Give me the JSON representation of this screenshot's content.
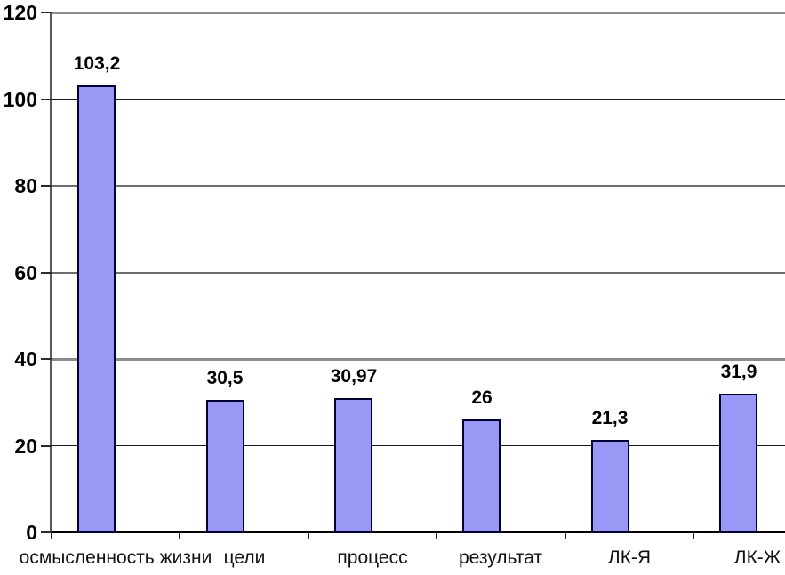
{
  "chart_data": {
    "type": "bar",
    "title": "",
    "xlabel": "",
    "ylabel": "",
    "categories": [
      "осмысленность жизни",
      "цели",
      "процесс",
      "результат",
      "ЛК-Я",
      "ЛК-Ж"
    ],
    "values": [
      103.2,
      30.5,
      30.97,
      26,
      21.3,
      31.9
    ],
    "value_labels": [
      "103,2",
      "30,5",
      "30,97",
      "26",
      "21,3",
      "31,9"
    ],
    "y_ticks": [
      0,
      20,
      40,
      60,
      80,
      100,
      120
    ],
    "y_tick_labels": [
      "0",
      "20",
      "40",
      "60",
      "80",
      "100",
      "120"
    ],
    "ylim": [
      0,
      120
    ],
    "grid": true,
    "legend": "none",
    "decimal_separator": ",",
    "colors": {
      "bar_fill": "#9999F5",
      "bar_border": "#000033",
      "grid_major": "#8c8c8c",
      "grid_medium": "#6e6e6e",
      "grid_minor": "#1a1a1a",
      "axis": "#000000",
      "y_axis": "#5a5a5a",
      "text": "#000000",
      "background": "#FFFFFF"
    }
  }
}
